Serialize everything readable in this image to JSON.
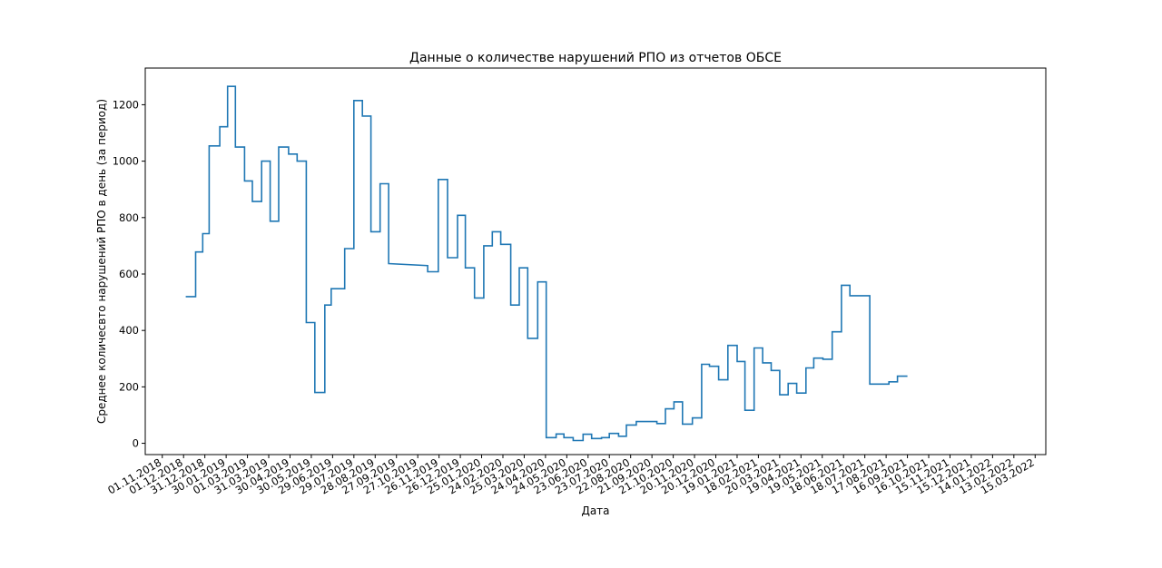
{
  "chart_data": {
    "type": "line",
    "step": true,
    "title": "Данные о количестве нарушений РПО из отчетов ОБСЕ",
    "xlabel": "Дата",
    "ylabel": "Среднее количесвто нарушений РПО в день (за период)",
    "ylim": [
      -40,
      1330
    ],
    "yticks": [
      0,
      200,
      400,
      600,
      800,
      1000,
      1200
    ],
    "xlim": [
      "2018-10-08",
      "2022-03-30"
    ],
    "x_tick_dates": [
      "2018-11-01",
      "2018-12-01",
      "2018-12-31",
      "2019-01-30",
      "2019-03-01",
      "2019-03-31",
      "2019-04-30",
      "2019-05-30",
      "2019-06-29",
      "2019-07-29",
      "2019-08-28",
      "2019-09-27",
      "2019-10-27",
      "2019-11-26",
      "2019-12-26",
      "2020-01-25",
      "2020-02-24",
      "2020-03-25",
      "2020-04-24",
      "2020-05-24",
      "2020-06-23",
      "2020-07-23",
      "2020-08-22",
      "2020-09-21",
      "2020-10-21",
      "2020-11-20",
      "2020-12-20",
      "2021-01-19",
      "2021-02-18",
      "2021-03-20",
      "2021-04-19",
      "2021-05-19",
      "2021-06-18",
      "2021-07-18",
      "2021-08-17",
      "2021-09-16",
      "2021-10-16",
      "2021-11-15",
      "2021-12-15",
      "2022-01-14",
      "2022-02-13",
      "2022-03-15"
    ],
    "x_tick_labels": [
      "01.11.2018",
      "01.12.2018",
      "31.12.2018",
      "30.01.2019",
      "01.03.2019",
      "31.03.2019",
      "30.04.2019",
      "30.05.2019",
      "29.06.2019",
      "29.07.2019",
      "28.08.2019",
      "27.09.2019",
      "27.10.2019",
      "26.11.2019",
      "26.12.2019",
      "25.01.2020",
      "24.02.2020",
      "25.03.2020",
      "24.04.2020",
      "24.05.2020",
      "23.06.2020",
      "23.07.2020",
      "22.08.2020",
      "21.09.2020",
      "21.10.2020",
      "20.11.2020",
      "20.12.2020",
      "19.01.2021",
      "18.02.2021",
      "20.03.2021",
      "19.04.2021",
      "19.05.2021",
      "18.06.2021",
      "18.07.2021",
      "17.08.2021",
      "16.09.2021",
      "16.10.2021",
      "15.11.2021",
      "15.12.2021",
      "14.01.2022",
      "13.02.2022",
      "15.03.2022"
    ],
    "series": [
      {
        "color": "#1f77b4",
        "points": [
          [
            "2018-12-04",
            520
          ],
          [
            "2018-12-18",
            520
          ],
          [
            "2018-12-18",
            678
          ],
          [
            "2018-12-28",
            678
          ],
          [
            "2018-12-28",
            743
          ],
          [
            "2019-01-06",
            743
          ],
          [
            "2019-01-06",
            1054
          ],
          [
            "2019-01-21",
            1054
          ],
          [
            "2019-01-21",
            1122
          ],
          [
            "2019-02-01",
            1122
          ],
          [
            "2019-02-01",
            1265
          ],
          [
            "2019-02-12",
            1265
          ],
          [
            "2019-02-12",
            1050
          ],
          [
            "2019-02-25",
            1050
          ],
          [
            "2019-02-25",
            930
          ],
          [
            "2019-03-08",
            930
          ],
          [
            "2019-03-08",
            857
          ],
          [
            "2019-03-21",
            857
          ],
          [
            "2019-03-21",
            1000
          ],
          [
            "2019-04-02",
            1000
          ],
          [
            "2019-04-02",
            787
          ],
          [
            "2019-04-14",
            787
          ],
          [
            "2019-04-14",
            1050
          ],
          [
            "2019-04-28",
            1050
          ],
          [
            "2019-04-28",
            1025
          ],
          [
            "2019-05-10",
            1025
          ],
          [
            "2019-05-10",
            1000
          ],
          [
            "2019-05-23",
            1000
          ],
          [
            "2019-05-23",
            428
          ],
          [
            "2019-06-04",
            428
          ],
          [
            "2019-06-04",
            180
          ],
          [
            "2019-06-18",
            180
          ],
          [
            "2019-06-18",
            490
          ],
          [
            "2019-06-27",
            490
          ],
          [
            "2019-06-27",
            548
          ],
          [
            "2019-07-16",
            548
          ],
          [
            "2019-07-16",
            690
          ],
          [
            "2019-07-29",
            690
          ],
          [
            "2019-07-29",
            1215
          ],
          [
            "2019-08-10",
            1215
          ],
          [
            "2019-08-10",
            1160
          ],
          [
            "2019-08-22",
            1160
          ],
          [
            "2019-08-22",
            750
          ],
          [
            "2019-09-04",
            750
          ],
          [
            "2019-09-04",
            920
          ],
          [
            "2019-09-16",
            920
          ],
          [
            "2019-09-16",
            637
          ],
          [
            "2019-11-10",
            630
          ],
          [
            "2019-11-10",
            608
          ],
          [
            "2019-11-25",
            608
          ],
          [
            "2019-11-25",
            935
          ],
          [
            "2019-12-08",
            935
          ],
          [
            "2019-12-08",
            658
          ],
          [
            "2019-12-22",
            658
          ],
          [
            "2019-12-22",
            808
          ],
          [
            "2020-01-02",
            808
          ],
          [
            "2020-01-02",
            622
          ],
          [
            "2020-01-15",
            622
          ],
          [
            "2020-01-15",
            515
          ],
          [
            "2020-01-28",
            515
          ],
          [
            "2020-01-28",
            700
          ],
          [
            "2020-02-09",
            700
          ],
          [
            "2020-02-09",
            750
          ],
          [
            "2020-02-21",
            750
          ],
          [
            "2020-02-21",
            705
          ],
          [
            "2020-03-06",
            705
          ],
          [
            "2020-03-06",
            490
          ],
          [
            "2020-03-18",
            490
          ],
          [
            "2020-03-18",
            622
          ],
          [
            "2020-03-30",
            622
          ],
          [
            "2020-03-30",
            372
          ],
          [
            "2020-04-13",
            372
          ],
          [
            "2020-04-13",
            572
          ],
          [
            "2020-04-25",
            572
          ],
          [
            "2020-04-25",
            20
          ],
          [
            "2020-05-09",
            20
          ],
          [
            "2020-05-09",
            33
          ],
          [
            "2020-05-20",
            33
          ],
          [
            "2020-05-20",
            20
          ],
          [
            "2020-06-02",
            20
          ],
          [
            "2020-06-02",
            10
          ],
          [
            "2020-06-16",
            10
          ],
          [
            "2020-06-16",
            32
          ],
          [
            "2020-06-28",
            32
          ],
          [
            "2020-06-28",
            17
          ],
          [
            "2020-07-12",
            17
          ],
          [
            "2020-07-12",
            20
          ],
          [
            "2020-07-23",
            20
          ],
          [
            "2020-07-23",
            35
          ],
          [
            "2020-08-05",
            35
          ],
          [
            "2020-08-05",
            25
          ],
          [
            "2020-08-16",
            25
          ],
          [
            "2020-08-16",
            65
          ],
          [
            "2020-08-30",
            65
          ],
          [
            "2020-08-30",
            77
          ],
          [
            "2020-09-28",
            77
          ],
          [
            "2020-09-28",
            70
          ],
          [
            "2020-10-10",
            70
          ],
          [
            "2020-10-10",
            122
          ],
          [
            "2020-10-22",
            122
          ],
          [
            "2020-10-22",
            147
          ],
          [
            "2020-11-03",
            147
          ],
          [
            "2020-11-03",
            68
          ],
          [
            "2020-11-17",
            68
          ],
          [
            "2020-11-17",
            90
          ],
          [
            "2020-11-30",
            90
          ],
          [
            "2020-11-30",
            280
          ],
          [
            "2020-12-11",
            280
          ],
          [
            "2020-12-11",
            273
          ],
          [
            "2020-12-24",
            273
          ],
          [
            "2020-12-24",
            225
          ],
          [
            "2021-01-06",
            225
          ],
          [
            "2021-01-06",
            347
          ],
          [
            "2021-01-19",
            347
          ],
          [
            "2021-01-19",
            290
          ],
          [
            "2021-01-30",
            290
          ],
          [
            "2021-01-30",
            117
          ],
          [
            "2021-02-12",
            117
          ],
          [
            "2021-02-12",
            338
          ],
          [
            "2021-02-24",
            338
          ],
          [
            "2021-02-24",
            285
          ],
          [
            "2021-03-08",
            285
          ],
          [
            "2021-03-08",
            258
          ],
          [
            "2021-03-20",
            258
          ],
          [
            "2021-03-20",
            172
          ],
          [
            "2021-04-01",
            172
          ],
          [
            "2021-04-01",
            212
          ],
          [
            "2021-04-13",
            212
          ],
          [
            "2021-04-13",
            178
          ],
          [
            "2021-04-26",
            178
          ],
          [
            "2021-04-26",
            267
          ],
          [
            "2021-05-07",
            267
          ],
          [
            "2021-05-07",
            302
          ],
          [
            "2021-05-20",
            302
          ],
          [
            "2021-05-20",
            298
          ],
          [
            "2021-06-02",
            298
          ],
          [
            "2021-06-02",
            395
          ],
          [
            "2021-06-15",
            395
          ],
          [
            "2021-06-15",
            560
          ],
          [
            "2021-06-27",
            560
          ],
          [
            "2021-06-27",
            523
          ],
          [
            "2021-07-25",
            523
          ],
          [
            "2021-07-25",
            210
          ],
          [
            "2021-08-21",
            210
          ],
          [
            "2021-08-21",
            218
          ],
          [
            "2021-09-02",
            218
          ],
          [
            "2021-09-02",
            238
          ],
          [
            "2021-09-16",
            238
          ]
        ]
      }
    ]
  }
}
